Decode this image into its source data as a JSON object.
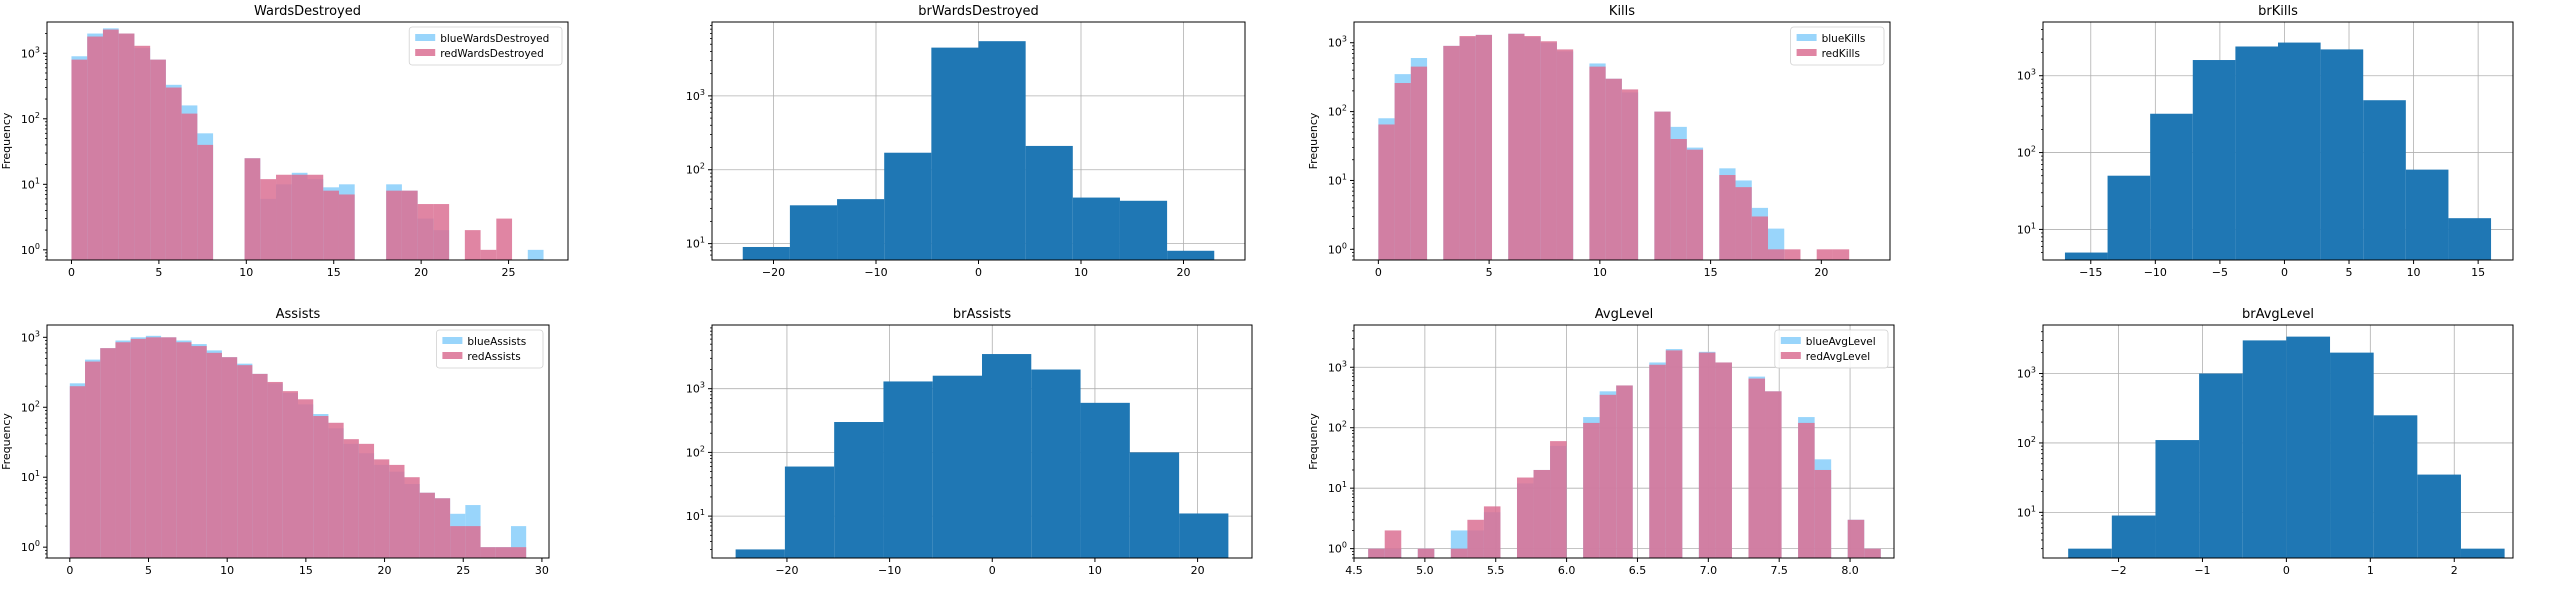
{
  "colors": {
    "blue": "#87cefa",
    "red": "#db7093",
    "overlap": "#ac82b4",
    "single": "#1f77b4",
    "grid": "#b0b0b0",
    "axis": "#000000"
  },
  "chart_data": [
    {
      "type": "bar",
      "title": "WardsDestroyed",
      "ylabel": "Frequency",
      "xlim": [
        -1.4,
        28.4
      ],
      "ylim": [
        0.7,
        3000
      ],
      "yscale": "log",
      "grid": false,
      "legend_position": "top-right",
      "xticks": [
        0,
        5,
        10,
        15,
        20,
        25
      ],
      "yticks": [
        1,
        10,
        100,
        1000
      ],
      "bin_width": 0.9,
      "series": [
        {
          "name": "blueWardsDestroyed",
          "color_key": "blue",
          "x": [
            0,
            0.9,
            1.8,
            2.7,
            3.6,
            4.5,
            5.4,
            6.3,
            7.2,
            9.9,
            10.8,
            11.7,
            12.6,
            13.5,
            14.4,
            15.3,
            18.0,
            18.9,
            19.8,
            20.7,
            26.1
          ],
          "values": [
            900,
            2000,
            2400,
            2000,
            1200,
            800,
            330,
            160,
            60,
            25,
            6,
            10,
            15,
            12,
            9,
            10,
            10,
            8,
            3,
            2,
            1
          ]
        },
        {
          "name": "redWardsDestroyed",
          "color_key": "red",
          "x": [
            0,
            0.9,
            1.8,
            2.7,
            3.6,
            4.5,
            5.4,
            6.3,
            7.2,
            9.9,
            10.8,
            11.7,
            12.6,
            13.5,
            14.4,
            15.3,
            18.0,
            18.9,
            19.8,
            20.7,
            22.5,
            23.4,
            24.3
          ],
          "values": [
            800,
            1800,
            2300,
            2000,
            1300,
            800,
            300,
            120,
            40,
            25,
            12,
            14,
            14,
            14,
            8,
            7,
            8,
            8,
            5,
            5,
            2,
            1,
            3
          ]
        }
      ]
    },
    {
      "type": "bar",
      "title": "brWardsDestroyed",
      "ylabel": "",
      "xlim": [
        -26,
        26
      ],
      "ylim": [
        6,
        10000
      ],
      "yscale": "log",
      "grid": true,
      "legend_position": "none",
      "xticks": [
        -20,
        -10,
        0,
        10,
        20
      ],
      "yticks": [
        10,
        100,
        1000
      ],
      "bin_width": 4.6,
      "series": [
        {
          "name": "",
          "color_key": "single",
          "x": [
            -23,
            -18.4,
            -13.8,
            -9.2,
            -4.6,
            0,
            4.6,
            9.2,
            13.8,
            18.4
          ],
          "values": [
            9,
            33,
            40,
            170,
            4500,
            5500,
            210,
            42,
            38,
            8
          ]
        }
      ]
    },
    {
      "type": "bar",
      "title": "Kills",
      "ylabel": "Frequency",
      "xlim": [
        -1.1,
        23.1
      ],
      "ylim": [
        0.7,
        2000
      ],
      "yscale": "log",
      "grid": false,
      "legend_position": "top-right",
      "xticks": [
        0,
        5,
        10,
        15,
        20
      ],
      "yticks": [
        1,
        10,
        100,
        1000
      ],
      "bin_width": 0.733,
      "series": [
        {
          "name": "blueKills",
          "color_key": "blue",
          "x": [
            0,
            0.733,
            1.466,
            2.932,
            3.665,
            4.398,
            5.864,
            6.597,
            7.33,
            8.063,
            9.529,
            10.262,
            10.995,
            12.461,
            13.194,
            13.927,
            15.393,
            16.126,
            16.859,
            17.592
          ],
          "values": [
            80,
            350,
            600,
            900,
            1200,
            1300,
            1350,
            1200,
            1000,
            750,
            500,
            300,
            190,
            100,
            60,
            30,
            15,
            10,
            4,
            2
          ]
        },
        {
          "name": "redKills",
          "color_key": "red",
          "x": [
            0,
            0.733,
            1.466,
            2.932,
            3.665,
            4.398,
            5.864,
            6.597,
            7.33,
            8.063,
            9.529,
            10.262,
            10.995,
            12.461,
            13.194,
            13.927,
            15.393,
            16.126,
            16.859,
            17.592,
            18.325,
            19.791,
            20.524
          ],
          "values": [
            65,
            260,
            450,
            900,
            1250,
            1300,
            1350,
            1250,
            1050,
            800,
            450,
            300,
            210,
            100,
            40,
            28,
            12,
            8,
            3,
            1,
            1,
            1,
            1
          ]
        }
      ]
    },
    {
      "type": "bar",
      "title": "brKills",
      "ylabel": "",
      "xlim": [
        -18.7,
        17.7
      ],
      "ylim": [
        4,
        5000
      ],
      "yscale": "log",
      "grid": true,
      "legend_position": "none",
      "xticks": [
        -15,
        -10,
        -5,
        0,
        5,
        10,
        15
      ],
      "yticks": [
        10,
        100,
        1000
      ],
      "bin_width": 3.3,
      "series": [
        {
          "name": "",
          "color_key": "single",
          "x": [
            -17,
            -13.7,
            -10.4,
            -7.1,
            -3.8,
            -0.5,
            2.8,
            6.1,
            9.4,
            12.7
          ],
          "values": [
            5,
            50,
            320,
            1600,
            2400,
            2700,
            2200,
            480,
            60,
            14
          ]
        }
      ]
    },
    {
      "type": "bar",
      "title": "Assists",
      "ylabel": "Frequency",
      "xlim": [
        -1.45,
        30.45
      ],
      "ylim": [
        0.7,
        1500
      ],
      "yscale": "log",
      "grid": false,
      "legend_position": "top-right",
      "xticks": [
        0,
        5,
        10,
        15,
        20,
        25,
        30
      ],
      "yticks": [
        1,
        10,
        100,
        1000
      ],
      "bin_width": 0.9667,
      "series": [
        {
          "name": "blueAssists",
          "color_key": "blue",
          "x": [
            0,
            0.9667,
            1.9333,
            2.9,
            3.8667,
            4.8333,
            5.8,
            6.7667,
            7.7333,
            8.7,
            9.6667,
            10.6333,
            11.6,
            12.5667,
            13.5333,
            14.5,
            15.4667,
            16.4333,
            17.4,
            18.3667,
            19.3333,
            20.3,
            21.2667,
            22.2333,
            23.2,
            24.1667,
            25.1333,
            26.1,
            27.0667,
            28.0333
          ],
          "values": [
            220,
            480,
            700,
            900,
            1000,
            1050,
            1000,
            900,
            800,
            650,
            520,
            420,
            300,
            220,
            160,
            110,
            80,
            50,
            30,
            22,
            15,
            12,
            8,
            6,
            5,
            3,
            4,
            1,
            1,
            2
          ]
        },
        {
          "name": "redAssists",
          "color_key": "red",
          "x": [
            0,
            0.9667,
            1.9333,
            2.9,
            3.8667,
            4.8333,
            5.8,
            6.7667,
            7.7333,
            8.7,
            9.6667,
            10.6333,
            11.6,
            12.5667,
            13.5333,
            14.5,
            15.4667,
            16.4333,
            17.4,
            18.3667,
            19.3333,
            20.3,
            21.2667,
            22.2333,
            23.2,
            24.1667,
            25.1333,
            26.1,
            27.0667,
            28.0333
          ],
          "values": [
            200,
            450,
            700,
            850,
            950,
            1000,
            1000,
            850,
            750,
            600,
            520,
            400,
            300,
            230,
            170,
            130,
            75,
            60,
            35,
            30,
            18,
            15,
            10,
            6,
            5,
            2,
            2,
            1,
            1,
            1
          ]
        }
      ]
    },
    {
      "type": "bar",
      "title": "brAssists",
      "ylabel": "",
      "xlim": [
        -27.3,
        25.3
      ],
      "ylim": [
        2.2,
        10000
      ],
      "yscale": "log",
      "grid": true,
      "legend_position": "none",
      "xticks": [
        -20,
        -10,
        0,
        10,
        20
      ],
      "yticks": [
        10,
        100,
        1000
      ],
      "bin_width": 4.8,
      "series": [
        {
          "name": "",
          "color_key": "single",
          "x": [
            -25,
            -20.2,
            -15.4,
            -10.6,
            -5.8,
            -1,
            3.8,
            8.6,
            13.4,
            18.2
          ],
          "values": [
            3,
            60,
            300,
            1300,
            1600,
            3500,
            2000,
            600,
            100,
            11
          ]
        }
      ]
    },
    {
      "type": "bar",
      "title": "AvgLevel",
      "ylabel": "Frequency",
      "xlim": [
        4.5,
        8.31
      ],
      "ylim": [
        0.7,
        5000
      ],
      "yscale": "log",
      "grid": true,
      "legend_position": "top-right",
      "xticks": [
        4.5,
        5.0,
        5.5,
        6.0,
        6.5,
        7.0,
        7.5,
        8.0
      ],
      "xtick_labels": [
        "4.5",
        "5.0",
        "5.5",
        "6.0",
        "6.5",
        "7.0",
        "7.5",
        "8.0"
      ],
      "yticks": [
        1,
        10,
        100,
        1000
      ],
      "bin_width": 0.1167,
      "series": [
        {
          "name": "blueAvgLevel",
          "color_key": "blue",
          "x": [
            4.6,
            4.7167,
            4.95,
            5.1833,
            5.3,
            5.4167,
            5.65,
            5.7667,
            5.8833,
            6.1167,
            6.2333,
            6.35,
            6.5833,
            6.7,
            6.9333,
            7.05,
            7.2833,
            7.4,
            7.6333,
            7.75,
            7.9833,
            8.1
          ],
          "values": [
            1,
            1,
            1,
            2,
            2,
            4,
            12,
            20,
            50,
            150,
            400,
            500,
            1200,
            2000,
            1800,
            1200,
            700,
            400,
            150,
            30,
            3,
            1
          ]
        },
        {
          "name": "redAvgLevel",
          "color_key": "red",
          "x": [
            4.6,
            4.7167,
            4.95,
            5.1833,
            5.3,
            5.4167,
            5.65,
            5.7667,
            5.8833,
            6.1167,
            6.2333,
            6.35,
            6.5833,
            6.7,
            6.9333,
            7.05,
            7.2833,
            7.4,
            7.6333,
            7.75,
            7.9833,
            8.1
          ],
          "values": [
            1,
            2,
            1,
            1,
            3,
            5,
            15,
            20,
            60,
            120,
            350,
            500,
            1100,
            1900,
            1750,
            1200,
            650,
            400,
            120,
            20,
            3,
            1
          ]
        }
      ]
    },
    {
      "type": "bar",
      "title": "brAvgLevel",
      "ylabel": "",
      "xlim": [
        -2.9,
        2.7
      ],
      "ylim": [
        2.2,
        5000
      ],
      "yscale": "log",
      "grid": true,
      "legend_position": "none",
      "xticks": [
        -2,
        -1,
        0,
        1,
        2
      ],
      "yticks": [
        10,
        100,
        1000
      ],
      "bin_width": 0.52,
      "series": [
        {
          "name": "",
          "color_key": "single",
          "x": [
            -2.6,
            -2.08,
            -1.56,
            -1.04,
            -0.52,
            0,
            0.52,
            1.04,
            1.56,
            2.08
          ],
          "values": [
            3,
            9,
            110,
            1000,
            3000,
            3400,
            2000,
            250,
            35,
            3
          ]
        }
      ]
    }
  ]
}
